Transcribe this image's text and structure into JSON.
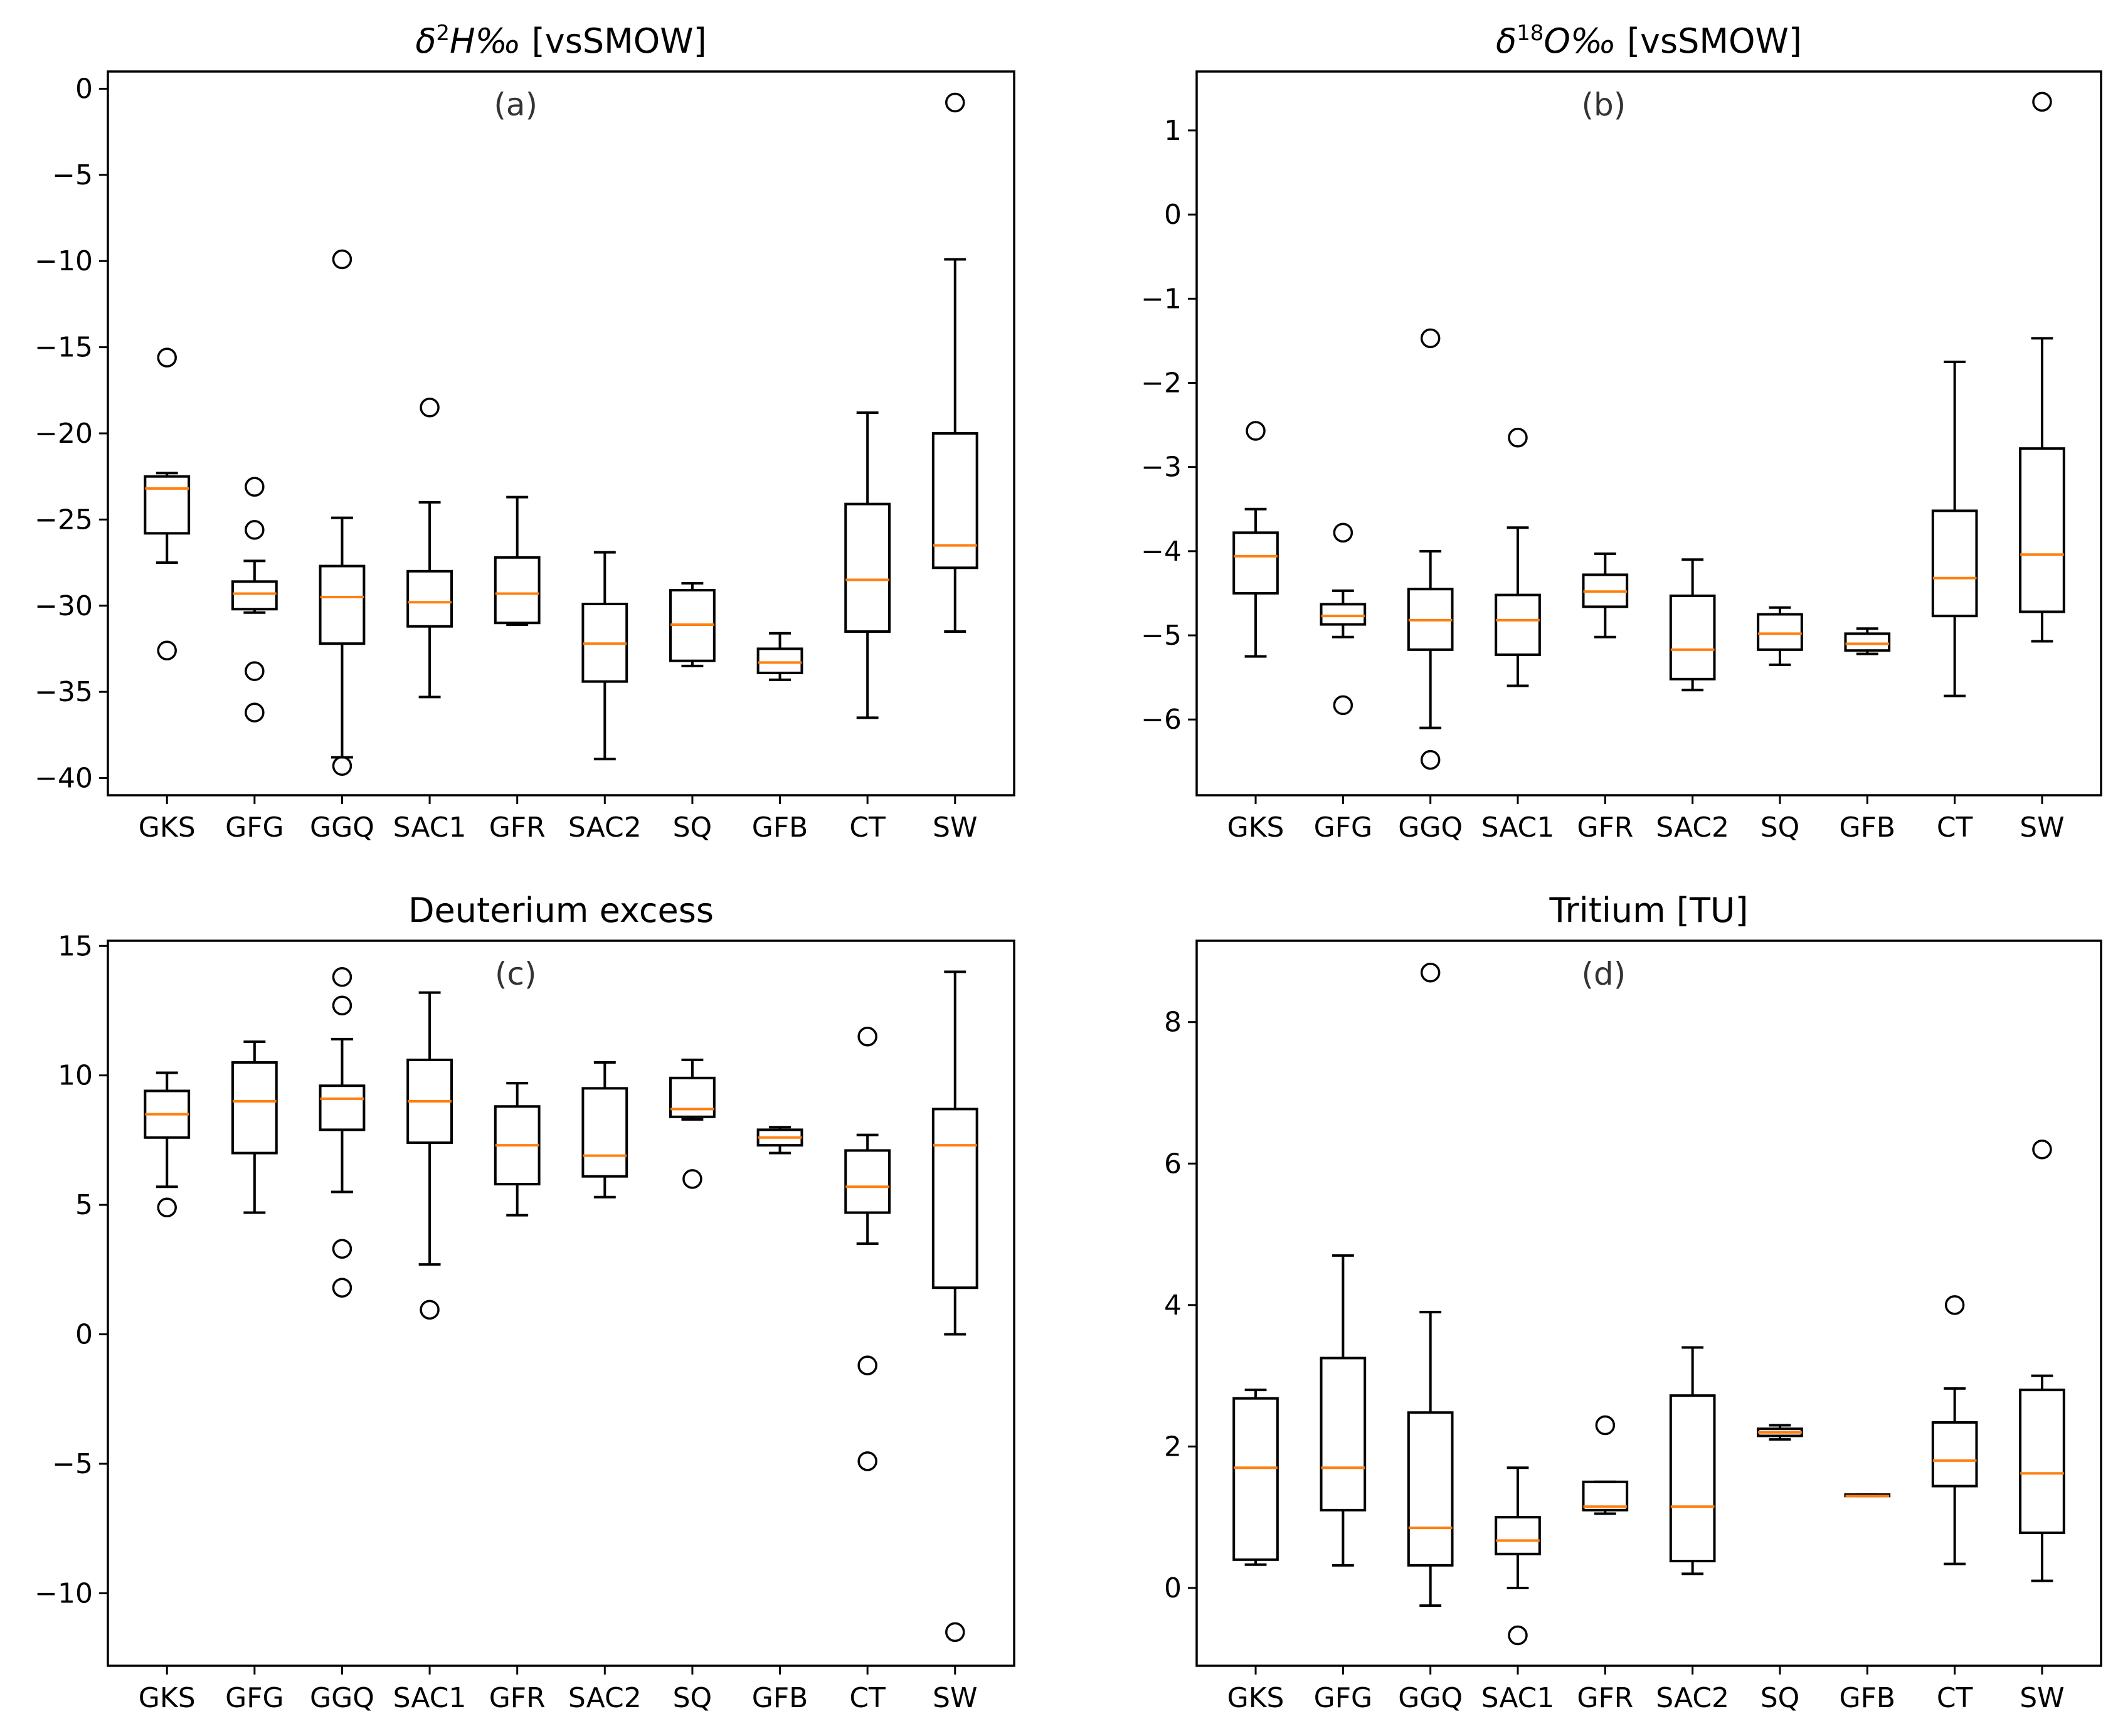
{
  "chart_data": [
    {
      "type": "box",
      "panel": "a",
      "title": "δ²H‰ [vsSMOW]",
      "title_parts": {
        "base": "δ",
        "sup": "2",
        "main": "H‰",
        "rest": " [vsSMOW]"
      },
      "panel_label": "(a)",
      "categories": [
        "GKS",
        "GFG",
        "GGQ",
        "SAC1",
        "GFR",
        "SAC2",
        "SQ",
        "GFB",
        "CT",
        "SW"
      ],
      "ylim": [
        -41,
        1
      ],
      "yticks": [
        0,
        -5,
        -10,
        -15,
        -20,
        -25,
        -30,
        -35,
        -40
      ],
      "ytick_labels": [
        "0",
        "−5",
        "−10",
        "−15",
        "−20",
        "−25",
        "−30",
        "−35",
        "−40"
      ],
      "boxes": [
        {
          "whislo": -27.5,
          "q1": -25.8,
          "med": -23.2,
          "q3": -22.5,
          "whishi": -22.3,
          "fliers": [
            -15.6,
            -32.6
          ]
        },
        {
          "whislo": -30.4,
          "q1": -30.2,
          "med": -29.3,
          "q3": -28.6,
          "whishi": -27.4,
          "fliers": [
            -23.1,
            -25.6,
            -33.8,
            -36.2
          ]
        },
        {
          "whislo": -38.8,
          "q1": -32.2,
          "med": -29.5,
          "q3": -27.7,
          "whishi": -24.9,
          "fliers": [
            -9.9,
            -39.3
          ]
        },
        {
          "whislo": -35.3,
          "q1": -31.2,
          "med": -29.8,
          "q3": -28.0,
          "whishi": -24.0,
          "fliers": [
            -18.5
          ]
        },
        {
          "whislo": -31.1,
          "q1": -31.0,
          "med": -29.3,
          "q3": -27.2,
          "whishi": -23.7,
          "fliers": []
        },
        {
          "whislo": -38.9,
          "q1": -34.4,
          "med": -32.2,
          "q3": -29.9,
          "whishi": -26.9,
          "fliers": []
        },
        {
          "whislo": -33.5,
          "q1": -33.2,
          "med": -31.1,
          "q3": -29.1,
          "whishi": -28.7,
          "fliers": []
        },
        {
          "whislo": -34.3,
          "q1": -33.9,
          "med": -33.3,
          "q3": -32.5,
          "whishi": -31.6,
          "fliers": []
        },
        {
          "whislo": -36.5,
          "q1": -31.5,
          "med": -28.5,
          "q3": -24.1,
          "whishi": -18.8,
          "fliers": []
        },
        {
          "whislo": -31.5,
          "q1": -27.8,
          "med": -26.5,
          "q3": -20.0,
          "whishi": -9.9,
          "fliers": [
            -0.8
          ]
        }
      ]
    },
    {
      "type": "box",
      "panel": "b",
      "title": "δ¹⁸O‰ [vsSMOW]",
      "title_parts": {
        "base": "δ",
        "sup": "18",
        "main": "O‰",
        "rest": " [vsSMOW]"
      },
      "panel_label": "(b)",
      "categories": [
        "GKS",
        "GFG",
        "GGQ",
        "SAC1",
        "GFR",
        "SAC2",
        "SQ",
        "GFB",
        "CT",
        "SW"
      ],
      "ylim": [
        -6.9,
        1.7
      ],
      "yticks": [
        1,
        0,
        -1,
        -2,
        -3,
        -4,
        -5,
        -6
      ],
      "ytick_labels": [
        "1",
        "0",
        "−1",
        "−2",
        "−3",
        "−4",
        "−5",
        "−6"
      ],
      "boxes": [
        {
          "whislo": -5.25,
          "q1": -4.5,
          "med": -4.06,
          "q3": -3.78,
          "whishi": -3.5,
          "fliers": [
            -2.57
          ]
        },
        {
          "whislo": -5.02,
          "q1": -4.87,
          "med": -4.77,
          "q3": -4.63,
          "whishi": -4.47,
          "fliers": [
            -3.78,
            -5.83
          ]
        },
        {
          "whislo": -6.1,
          "q1": -5.17,
          "med": -4.82,
          "q3": -4.45,
          "whishi": -4.0,
          "fliers": [
            -1.47,
            -6.48
          ]
        },
        {
          "whislo": -5.6,
          "q1": -5.23,
          "med": -4.82,
          "q3": -4.52,
          "whishi": -3.72,
          "fliers": [
            -2.65
          ]
        },
        {
          "whislo": -5.02,
          "q1": -4.66,
          "med": -4.48,
          "q3": -4.28,
          "whishi": -4.03,
          "fliers": []
        },
        {
          "whislo": -5.65,
          "q1": -5.52,
          "med": -5.17,
          "q3": -4.53,
          "whishi": -4.1,
          "fliers": []
        },
        {
          "whislo": -5.35,
          "q1": -5.17,
          "med": -4.98,
          "q3": -4.75,
          "whishi": -4.67,
          "fliers": []
        },
        {
          "whislo": -5.22,
          "q1": -5.18,
          "med": -5.1,
          "q3": -4.98,
          "whishi": -4.92,
          "fliers": []
        },
        {
          "whislo": -5.72,
          "q1": -4.77,
          "med": -4.32,
          "q3": -3.52,
          "whishi": -1.75,
          "fliers": []
        },
        {
          "whislo": -5.07,
          "q1": -4.72,
          "med": -4.04,
          "q3": -2.78,
          "whishi": -1.47,
          "fliers": [
            1.34
          ]
        }
      ]
    },
    {
      "type": "box",
      "panel": "c",
      "title": "Deuterium excess",
      "panel_label": "(c)",
      "categories": [
        "GKS",
        "GFG",
        "GGQ",
        "SAC1",
        "GFR",
        "SAC2",
        "SQ",
        "GFB",
        "CT",
        "SW"
      ],
      "ylim": [
        -12.8,
        15.2
      ],
      "yticks": [
        15,
        10,
        5,
        0,
        -5,
        -10
      ],
      "ytick_labels": [
        "15",
        "10",
        "5",
        "0",
        "−5",
        "−10"
      ],
      "boxes": [
        {
          "whislo": 5.7,
          "q1": 7.6,
          "med": 8.5,
          "q3": 9.4,
          "whishi": 10.1,
          "fliers": [
            4.9
          ]
        },
        {
          "whislo": 4.7,
          "q1": 7.0,
          "med": 9.0,
          "q3": 10.5,
          "whishi": 11.3,
          "fliers": []
        },
        {
          "whislo": 5.5,
          "q1": 7.9,
          "med": 9.1,
          "q3": 9.6,
          "whishi": 11.4,
          "fliers": [
            13.8,
            12.7,
            3.3,
            1.8
          ]
        },
        {
          "whislo": 2.7,
          "q1": 7.4,
          "med": 9.0,
          "q3": 10.6,
          "whishi": 13.2,
          "fliers": [
            0.95
          ]
        },
        {
          "whislo": 4.6,
          "q1": 5.8,
          "med": 7.3,
          "q3": 8.8,
          "whishi": 9.7,
          "fliers": []
        },
        {
          "whislo": 5.3,
          "q1": 6.1,
          "med": 6.9,
          "q3": 9.5,
          "whishi": 10.5,
          "fliers": []
        },
        {
          "whislo": 8.3,
          "q1": 8.4,
          "med": 8.7,
          "q3": 9.9,
          "whishi": 10.6,
          "fliers": [
            6.0
          ]
        },
        {
          "whislo": 7.0,
          "q1": 7.3,
          "med": 7.6,
          "q3": 7.9,
          "whishi": 8.0,
          "fliers": []
        },
        {
          "whislo": 3.5,
          "q1": 4.7,
          "med": 5.7,
          "q3": 7.1,
          "whishi": 7.7,
          "fliers": [
            11.5,
            -1.2,
            -4.9
          ]
        },
        {
          "whislo": 0.0,
          "q1": 1.8,
          "med": 7.3,
          "q3": 8.7,
          "whishi": 14.0,
          "fliers": [
            -11.5
          ]
        }
      ]
    },
    {
      "type": "box",
      "panel": "d",
      "title": "Tritium [TU]",
      "panel_label": "(d)",
      "categories": [
        "GKS",
        "GFG",
        "GGQ",
        "SAC1",
        "GFR",
        "SAC2",
        "SQ",
        "GFB",
        "CT",
        "SW"
      ],
      "ylim": [
        -1.1,
        9.15
      ],
      "yticks": [
        8,
        6,
        4,
        2,
        0
      ],
      "ytick_labels": [
        "8",
        "6",
        "4",
        "2",
        "0"
      ],
      "boxes": [
        {
          "whislo": 0.33,
          "q1": 0.4,
          "med": 1.7,
          "q3": 2.68,
          "whishi": 2.8,
          "fliers": []
        },
        {
          "whislo": 0.32,
          "q1": 1.1,
          "med": 1.7,
          "q3": 3.25,
          "whishi": 4.7,
          "fliers": []
        },
        {
          "whislo": -0.25,
          "q1": 0.32,
          "med": 0.85,
          "q3": 2.48,
          "whishi": 3.9,
          "fliers": [
            8.7
          ]
        },
        {
          "whislo": 0.0,
          "q1": 0.48,
          "med": 0.67,
          "q3": 1.0,
          "whishi": 1.7,
          "fliers": [
            -0.67
          ]
        },
        {
          "whislo": 1.05,
          "q1": 1.1,
          "med": 1.15,
          "q3": 1.5,
          "whishi": 1.5,
          "fliers": [
            2.3
          ]
        },
        {
          "whislo": 0.2,
          "q1": 0.38,
          "med": 1.15,
          "q3": 2.72,
          "whishi": 3.4,
          "fliers": []
        },
        {
          "whislo": 2.1,
          "q1": 2.15,
          "med": 2.2,
          "q3": 2.25,
          "whishi": 2.3,
          "fliers": []
        },
        {
          "whislo": 1.3,
          "q1": 1.3,
          "med": 1.3,
          "q3": 1.32,
          "whishi": 1.32,
          "fliers": []
        },
        {
          "whislo": 0.34,
          "q1": 1.44,
          "med": 1.8,
          "q3": 2.34,
          "whishi": 2.82,
          "fliers": [
            4.0
          ]
        },
        {
          "whislo": 0.1,
          "q1": 0.78,
          "med": 1.62,
          "q3": 2.8,
          "whishi": 3.0,
          "fliers": [
            6.2
          ]
        }
      ]
    }
  ],
  "colors": {
    "median": "#ff7f0e",
    "box": "#000000",
    "background": "#ffffff"
  }
}
